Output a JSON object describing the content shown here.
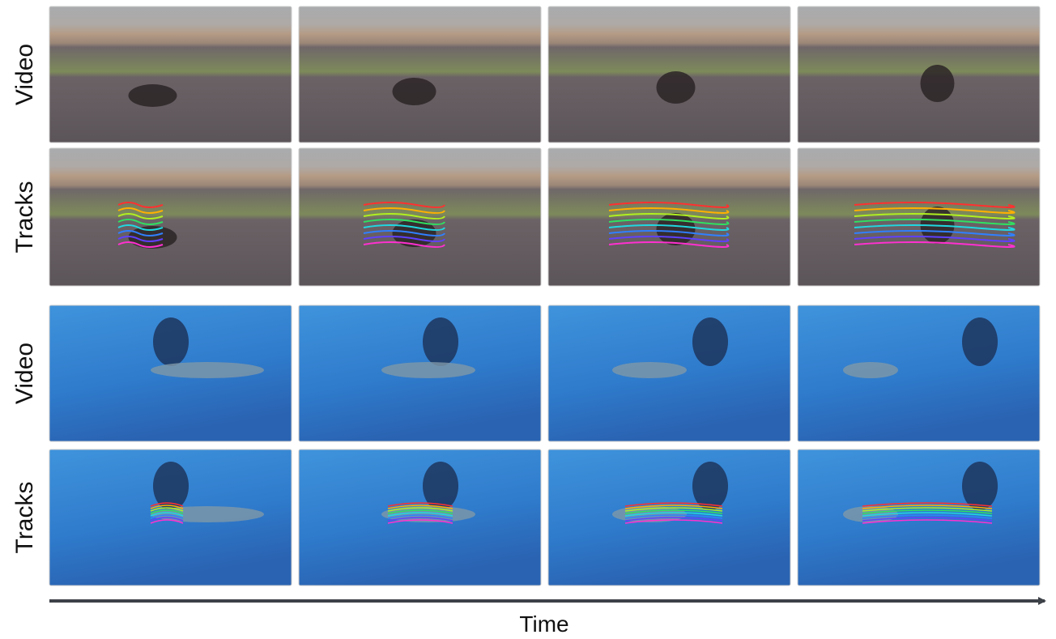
{
  "row_labels": [
    "Video",
    "Tracks",
    "Video",
    "Tracks"
  ],
  "axis_label": "Time"
}
